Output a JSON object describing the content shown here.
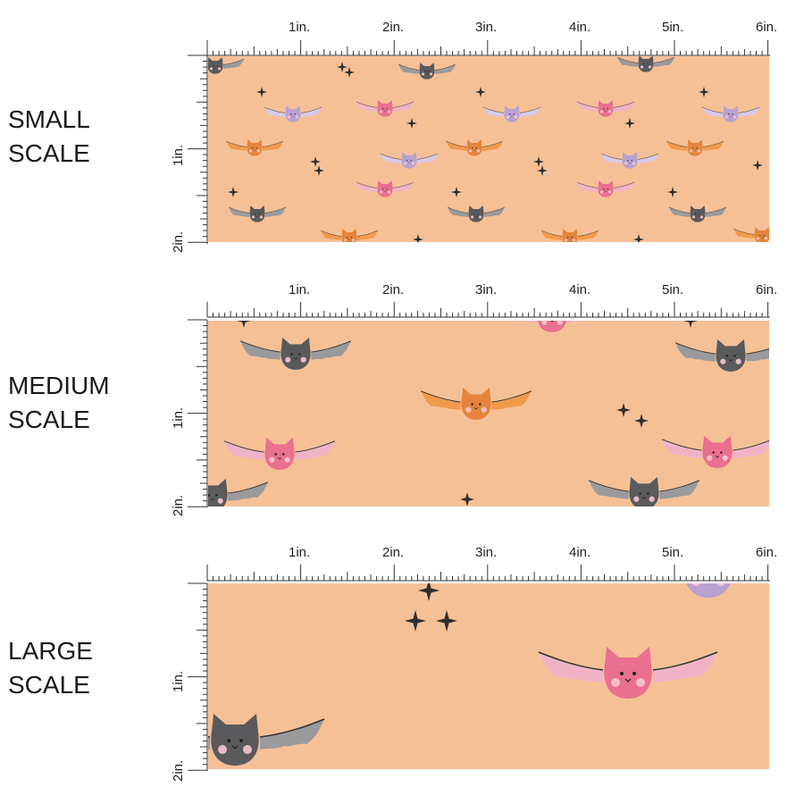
{
  "sections": [
    {
      "label_line1": "SMALL",
      "label_line2": "SCALE",
      "bat_scale": 0.32
    },
    {
      "label_line1": "MEDIUM",
      "label_line2": "SCALE",
      "bat_scale": 0.62
    },
    {
      "label_line1": "LARGE",
      "label_line2": "SCALE",
      "bat_scale": 1.0
    }
  ],
  "ruler": {
    "top_labels": [
      "1in.",
      "2in.",
      "3in.",
      "4in.",
      "5in.",
      "6in."
    ],
    "side_labels": [
      "1in.",
      "2in."
    ]
  },
  "colors": {
    "background": "#f6c096",
    "bat_gray": "#5a5a5c",
    "bat_orange": "#e5853d",
    "bat_pink": "#e9708f",
    "bat_lilac": "#b9a1d2",
    "stars": "#2e2e2e"
  }
}
